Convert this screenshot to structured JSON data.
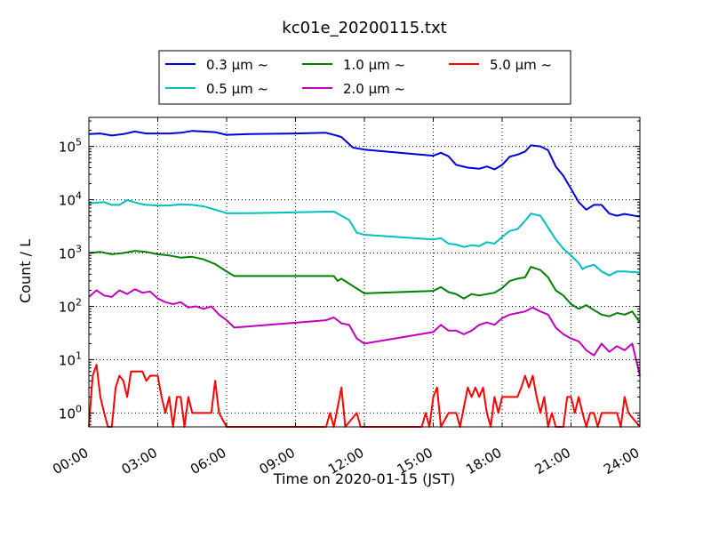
{
  "chart_data": {
    "type": "line",
    "title": "kc01e_20200115.txt",
    "xlabel": "Time on 2020-01-15 (JST)",
    "ylabel": "Count / L",
    "y_scale": "log",
    "ylim": [
      0.55,
      350000
    ],
    "xlim": [
      "00:00",
      "24:00"
    ],
    "grid": true,
    "legend_position": "top-center",
    "x_tick_labels": [
      "00:00",
      "03:00",
      "06:00",
      "09:00",
      "12:00",
      "15:00",
      "18:00",
      "21:00",
      "24:00"
    ],
    "y_ticks": [
      {
        "value": 1,
        "base": "10",
        "exp": "0"
      },
      {
        "value": 10,
        "base": "10",
        "exp": "1"
      },
      {
        "value": 100,
        "base": "10",
        "exp": "2"
      },
      {
        "value": 1000,
        "base": "10",
        "exp": "3"
      },
      {
        "value": 10000,
        "base": "10",
        "exp": "4"
      },
      {
        "value": 100000,
        "base": "10",
        "exp": "5"
      }
    ],
    "series": [
      {
        "name": "0.3 μm ~",
        "color": "#0000dd",
        "points": [
          [
            "00:00",
            170000
          ],
          [
            "00:30",
            175000
          ],
          [
            "01:00",
            160000
          ],
          [
            "01:30",
            170000
          ],
          [
            "02:00",
            190000
          ],
          [
            "02:30",
            175000
          ],
          [
            "03:00",
            175000
          ],
          [
            "03:30",
            175000
          ],
          [
            "04:00",
            180000
          ],
          [
            "04:30",
            195000
          ],
          [
            "05:00",
            190000
          ],
          [
            "05:30",
            185000
          ],
          [
            "06:00",
            165000
          ],
          [
            "07:00",
            170000
          ],
          [
            "09:00",
            175000
          ],
          [
            "10:20",
            180000
          ],
          [
            "10:40",
            165000
          ],
          [
            "11:00",
            150000
          ],
          [
            "11:30",
            95000
          ],
          [
            "12:00",
            87000
          ],
          [
            "15:00",
            67000
          ],
          [
            "15:20",
            76000
          ],
          [
            "15:40",
            65000
          ],
          [
            "16:00",
            45000
          ],
          [
            "16:30",
            40000
          ],
          [
            "17:00",
            38000
          ],
          [
            "17:20",
            42000
          ],
          [
            "17:40",
            37000
          ],
          [
            "18:00",
            45000
          ],
          [
            "18:20",
            64000
          ],
          [
            "18:40",
            70000
          ],
          [
            "19:00",
            80000
          ],
          [
            "19:15",
            105000
          ],
          [
            "19:40",
            100000
          ],
          [
            "20:00",
            85000
          ],
          [
            "20:20",
            42000
          ],
          [
            "20:40",
            28000
          ],
          [
            "21:00",
            16000
          ],
          [
            "21:20",
            9000
          ],
          [
            "21:40",
            6500
          ],
          [
            "22:00",
            8000
          ],
          [
            "22:20",
            8000
          ],
          [
            "22:40",
            5500
          ],
          [
            "23:00",
            5000
          ],
          [
            "23:20",
            5400
          ],
          [
            "24:00",
            4800
          ]
        ]
      },
      {
        "name": "0.5 μm ~",
        "color": "#00bfbf",
        "points": [
          [
            "00:00",
            8500
          ],
          [
            "00:40",
            9000
          ],
          [
            "01:00",
            8000
          ],
          [
            "01:20",
            8000
          ],
          [
            "01:40",
            9800
          ],
          [
            "02:10",
            8500
          ],
          [
            "02:30",
            8000
          ],
          [
            "03:00",
            7800
          ],
          [
            "03:30",
            7800
          ],
          [
            "04:00",
            8200
          ],
          [
            "04:30",
            8000
          ],
          [
            "05:00",
            7500
          ],
          [
            "05:30",
            6500
          ],
          [
            "06:00",
            5600
          ],
          [
            "07:00",
            5600
          ],
          [
            "09:00",
            5800
          ],
          [
            "10:40",
            6000
          ],
          [
            "11:00",
            5000
          ],
          [
            "11:20",
            4200
          ],
          [
            "11:40",
            2400
          ],
          [
            "12:00",
            2200
          ],
          [
            "15:00",
            1800
          ],
          [
            "15:20",
            1900
          ],
          [
            "15:40",
            1500
          ],
          [
            "16:00",
            1450
          ],
          [
            "16:20",
            1300
          ],
          [
            "16:40",
            1400
          ],
          [
            "17:00",
            1350
          ],
          [
            "17:20",
            1600
          ],
          [
            "17:40",
            1500
          ],
          [
            "18:00",
            2000
          ],
          [
            "18:20",
            2600
          ],
          [
            "18:40",
            2800
          ],
          [
            "19:00",
            4000
          ],
          [
            "19:15",
            5500
          ],
          [
            "19:40",
            5000
          ],
          [
            "20:00",
            3000
          ],
          [
            "20:20",
            1800
          ],
          [
            "20:40",
            1200
          ],
          [
            "21:00",
            900
          ],
          [
            "21:20",
            650
          ],
          [
            "21:30",
            500
          ],
          [
            "21:40",
            550
          ],
          [
            "22:00",
            600
          ],
          [
            "22:20",
            450
          ],
          [
            "22:40",
            380
          ],
          [
            "23:00",
            450
          ],
          [
            "23:20",
            450
          ],
          [
            "24:00",
            430
          ]
        ]
      },
      {
        "name": "1.0 μm ~",
        "color": "#008000",
        "points": [
          [
            "00:00",
            1000
          ],
          [
            "00:30",
            1050
          ],
          [
            "01:00",
            950
          ],
          [
            "01:30",
            1000
          ],
          [
            "02:00",
            1100
          ],
          [
            "02:30",
            1050
          ],
          [
            "03:00",
            950
          ],
          [
            "03:30",
            900
          ],
          [
            "04:00",
            820
          ],
          [
            "04:30",
            850
          ],
          [
            "05:00",
            760
          ],
          [
            "05:30",
            620
          ],
          [
            "06:00",
            450
          ],
          [
            "06:20",
            370
          ],
          [
            "09:00",
            370
          ],
          [
            "10:40",
            370
          ],
          [
            "10:50",
            300
          ],
          [
            "11:00",
            330
          ],
          [
            "11:30",
            240
          ],
          [
            "12:00",
            175
          ],
          [
            "15:00",
            195
          ],
          [
            "15:20",
            230
          ],
          [
            "15:40",
            185
          ],
          [
            "16:00",
            170
          ],
          [
            "16:20",
            140
          ],
          [
            "16:40",
            170
          ],
          [
            "17:00",
            160
          ],
          [
            "17:20",
            170
          ],
          [
            "17:40",
            180
          ],
          [
            "18:00",
            220
          ],
          [
            "18:20",
            300
          ],
          [
            "18:40",
            330
          ],
          [
            "19:00",
            350
          ],
          [
            "19:15",
            550
          ],
          [
            "19:40",
            480
          ],
          [
            "20:00",
            350
          ],
          [
            "20:20",
            200
          ],
          [
            "20:40",
            160
          ],
          [
            "21:00",
            110
          ],
          [
            "21:20",
            90
          ],
          [
            "21:40",
            105
          ],
          [
            "22:00",
            85
          ],
          [
            "22:20",
            70
          ],
          [
            "22:40",
            65
          ],
          [
            "23:00",
            75
          ],
          [
            "23:20",
            70
          ],
          [
            "23:40",
            80
          ],
          [
            "24:00",
            50
          ]
        ]
      },
      {
        "name": "2.0 μm ~",
        "color": "#bf00bf",
        "points": [
          [
            "00:00",
            150
          ],
          [
            "00:20",
            200
          ],
          [
            "00:40",
            160
          ],
          [
            "01:00",
            150
          ],
          [
            "01:20",
            200
          ],
          [
            "01:40",
            170
          ],
          [
            "02:00",
            210
          ],
          [
            "02:20",
            180
          ],
          [
            "02:40",
            190
          ],
          [
            "03:00",
            140
          ],
          [
            "03:20",
            120
          ],
          [
            "03:40",
            110
          ],
          [
            "04:00",
            120
          ],
          [
            "04:20",
            95
          ],
          [
            "04:40",
            100
          ],
          [
            "05:00",
            90
          ],
          [
            "05:20",
            100
          ],
          [
            "05:40",
            70
          ],
          [
            "06:00",
            55
          ],
          [
            "06:20",
            40
          ],
          [
            "10:20",
            55
          ],
          [
            "10:40",
            62
          ],
          [
            "11:00",
            48
          ],
          [
            "11:20",
            45
          ],
          [
            "11:40",
            25
          ],
          [
            "12:00",
            20
          ],
          [
            "15:00",
            33
          ],
          [
            "15:20",
            45
          ],
          [
            "15:40",
            35
          ],
          [
            "16:00",
            35
          ],
          [
            "16:20",
            30
          ],
          [
            "16:40",
            35
          ],
          [
            "17:00",
            45
          ],
          [
            "17:20",
            50
          ],
          [
            "17:40",
            45
          ],
          [
            "18:00",
            60
          ],
          [
            "18:20",
            70
          ],
          [
            "18:40",
            75
          ],
          [
            "19:00",
            80
          ],
          [
            "19:20",
            95
          ],
          [
            "19:40",
            80
          ],
          [
            "20:00",
            70
          ],
          [
            "20:20",
            40
          ],
          [
            "20:40",
            30
          ],
          [
            "21:00",
            25
          ],
          [
            "21:20",
            22
          ],
          [
            "21:40",
            15
          ],
          [
            "22:00",
            12
          ],
          [
            "22:20",
            20
          ],
          [
            "22:40",
            14
          ],
          [
            "23:00",
            18
          ],
          [
            "23:20",
            15
          ],
          [
            "23:40",
            20
          ],
          [
            "24:00",
            5
          ]
        ]
      },
      {
        "name": "5.0 μm ~",
        "color": "#ff0000",
        "points": [
          [
            "00:00",
            0.5
          ],
          [
            "00:10",
            5
          ],
          [
            "00:20",
            8
          ],
          [
            "00:30",
            2
          ],
          [
            "00:40",
            1
          ],
          [
            "00:50",
            0.5
          ],
          [
            "01:00",
            0.5
          ],
          [
            "01:10",
            3
          ],
          [
            "01:20",
            5
          ],
          [
            "01:30",
            4
          ],
          [
            "01:40",
            2
          ],
          [
            "01:50",
            6
          ],
          [
            "02:00",
            6
          ],
          [
            "02:20",
            6
          ],
          [
            "02:30",
            4
          ],
          [
            "02:40",
            5
          ],
          [
            "02:50",
            5
          ],
          [
            "03:00",
            5
          ],
          [
            "03:10",
            2
          ],
          [
            "03:20",
            1
          ],
          [
            "03:30",
            2
          ],
          [
            "03:40",
            0.5
          ],
          [
            "03:50",
            2
          ],
          [
            "04:00",
            2
          ],
          [
            "04:10",
            0.5
          ],
          [
            "04:20",
            2
          ],
          [
            "04:30",
            1
          ],
          [
            "05:20",
            1
          ],
          [
            "05:30",
            4
          ],
          [
            "05:40",
            1
          ],
          [
            "06:00",
            0.5
          ],
          [
            "10:20",
            0.5
          ],
          [
            "10:30",
            1
          ],
          [
            "10:40",
            0.5
          ],
          [
            "11:00",
            3
          ],
          [
            "11:10",
            0.5
          ],
          [
            "11:40",
            1
          ],
          [
            "11:50",
            0.5
          ],
          [
            "14:30",
            0.5
          ],
          [
            "14:40",
            1
          ],
          [
            "14:50",
            0.5
          ],
          [
            "15:00",
            2
          ],
          [
            "15:10",
            3
          ],
          [
            "15:20",
            0.5
          ],
          [
            "15:40",
            1
          ],
          [
            "16:00",
            1
          ],
          [
            "16:10",
            0.5
          ],
          [
            "16:30",
            3
          ],
          [
            "16:40",
            2
          ],
          [
            "16:50",
            3
          ],
          [
            "17:00",
            2
          ],
          [
            "17:10",
            3
          ],
          [
            "17:20",
            1
          ],
          [
            "17:30",
            0.5
          ],
          [
            "17:40",
            2
          ],
          [
            "17:50",
            1
          ],
          [
            "18:00",
            2
          ],
          [
            "18:40",
            2
          ],
          [
            "18:50",
            3
          ],
          [
            "19:00",
            5
          ],
          [
            "19:10",
            3
          ],
          [
            "19:20",
            5
          ],
          [
            "19:30",
            2
          ],
          [
            "19:40",
            1
          ],
          [
            "19:50",
            2
          ],
          [
            "20:00",
            0.5
          ],
          [
            "20:10",
            1
          ],
          [
            "20:20",
            0.5
          ],
          [
            "20:40",
            0.5
          ],
          [
            "20:50",
            2
          ],
          [
            "21:00",
            2
          ],
          [
            "21:10",
            1
          ],
          [
            "21:20",
            2
          ],
          [
            "21:30",
            1
          ],
          [
            "21:40",
            0.5
          ],
          [
            "21:50",
            1
          ],
          [
            "22:00",
            1
          ],
          [
            "22:10",
            0.5
          ],
          [
            "22:20",
            1
          ],
          [
            "22:30",
            1
          ],
          [
            "23:00",
            1
          ],
          [
            "23:10",
            0.5
          ],
          [
            "23:20",
            2
          ],
          [
            "23:30",
            1
          ],
          [
            "24:00",
            0.5
          ]
        ]
      }
    ]
  }
}
